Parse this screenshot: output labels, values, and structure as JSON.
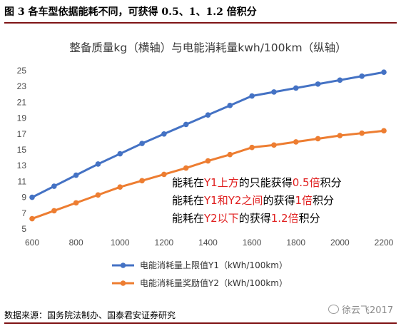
{
  "figure_title": "图 3 各车型依据能耗不同，可获得 0.5、1、1.2 倍积分",
  "source_text": "数据来源：国务院法制办、国泰君安证券研究",
  "watermark": "徐云飞2017",
  "annotations": [
    {
      "parts": [
        {
          "t": "能耗在",
          "hl": false
        },
        {
          "t": "Y1上方",
          "hl": true
        },
        {
          "t": "的只能获得",
          "hl": false
        },
        {
          "t": "0.5倍",
          "hl": true
        },
        {
          "t": "积分",
          "hl": false
        }
      ]
    },
    {
      "parts": [
        {
          "t": "能耗在",
          "hl": false
        },
        {
          "t": "Y1和Y2之间",
          "hl": true
        },
        {
          "t": "的获得",
          "hl": false
        },
        {
          "t": "1倍",
          "hl": true
        },
        {
          "t": "积分",
          "hl": false
        }
      ]
    },
    {
      "parts": [
        {
          "t": "能耗在",
          "hl": false
        },
        {
          "t": "Y2以下",
          "hl": true
        },
        {
          "t": "的获得",
          "hl": false
        },
        {
          "t": "1.2倍",
          "hl": true
        },
        {
          "t": "积分",
          "hl": false
        }
      ]
    }
  ],
  "colors": {
    "series1": "#4472c4",
    "series2": "#ed7d31",
    "highlight": "#e02020"
  },
  "chart_data": {
    "type": "line",
    "title": "整备质量kg（横轴）与电能消耗量kwh/100km（纵轴）",
    "xlim": [
      600,
      2200
    ],
    "ylim": [
      5,
      25
    ],
    "x_ticks": [
      600,
      800,
      1000,
      1200,
      1400,
      1600,
      1800,
      2000,
      2200
    ],
    "y_ticks": [
      5,
      7,
      9,
      11,
      13,
      15,
      17,
      19,
      21,
      23,
      25
    ],
    "grid": false,
    "legend_position": "bottom",
    "series": [
      {
        "name": "电能消耗量上限值Y1（kWh/100km）",
        "color": "#4472c4",
        "x": [
          600,
          700,
          800,
          900,
          1000,
          1100,
          1200,
          1300,
          1400,
          1500,
          1600,
          1700,
          1800,
          1900,
          2000,
          2100,
          2200
        ],
        "y": [
          9.0,
          10.4,
          11.8,
          13.2,
          14.5,
          15.8,
          17.0,
          18.2,
          19.4,
          20.6,
          21.8,
          22.3,
          22.8,
          23.3,
          23.8,
          24.3,
          24.8
        ]
      },
      {
        "name": "电能消耗量奖励值Y2（kWh/100km）",
        "color": "#ed7d31",
        "x": [
          600,
          700,
          800,
          900,
          1000,
          1100,
          1200,
          1300,
          1400,
          1500,
          1600,
          1700,
          1800,
          1900,
          2000,
          2100,
          2200
        ],
        "y": [
          6.3,
          7.3,
          8.3,
          9.3,
          10.3,
          11.1,
          11.9,
          12.7,
          13.6,
          14.4,
          15.3,
          15.6,
          16.0,
          16.4,
          16.8,
          17.1,
          17.4
        ]
      }
    ]
  }
}
